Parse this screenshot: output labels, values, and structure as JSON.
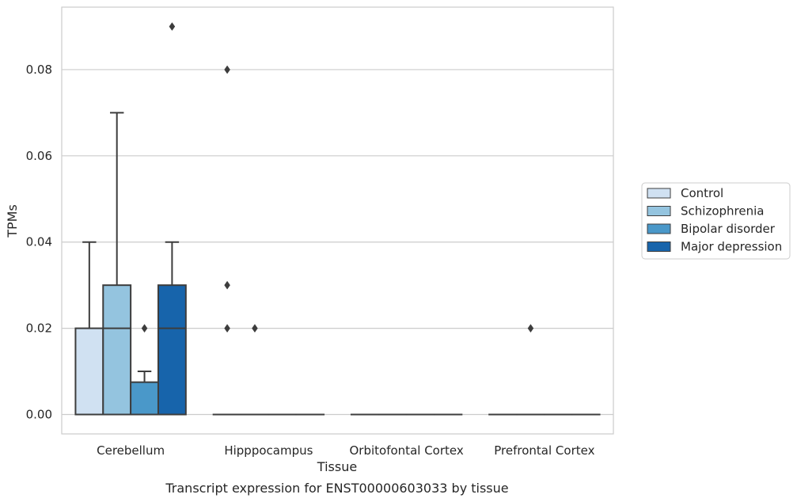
{
  "caption": "Transcript expression for ENST00000603033 by tissue",
  "chart_data": {
    "type": "boxplot",
    "xlabel": "Tissue",
    "ylabel": "TPMs",
    "ylim": [
      -0.0045,
      0.0945
    ],
    "yticks": [
      0.0,
      0.02,
      0.04,
      0.06,
      0.08
    ],
    "ytick_labels": [
      "0.00",
      "0.02",
      "0.04",
      "0.06",
      "0.08"
    ],
    "categories": [
      "Cerebellum",
      "Hipppocampus",
      "Orbitofontal Cortex",
      "Prefrontal Cortex"
    ],
    "grid": "horizontal",
    "legend_position": "right",
    "series": [
      {
        "name": "Control",
        "color": "#d0e1f2",
        "boxes": [
          {
            "whisker_low": 0.0,
            "q1": 0.0,
            "median": 0.0,
            "q3": 0.02,
            "whisker_high": 0.04,
            "outliers": []
          },
          {
            "whisker_low": 0.0,
            "q1": 0.0,
            "median": 0.0,
            "q3": 0.0,
            "whisker_high": 0.0,
            "outliers": [
              0.08,
              0.03,
              0.02
            ]
          },
          {
            "whisker_low": 0.0,
            "q1": 0.0,
            "median": 0.0,
            "q3": 0.0,
            "whisker_high": 0.0,
            "outliers": []
          },
          {
            "whisker_low": 0.0,
            "q1": 0.0,
            "median": 0.0,
            "q3": 0.0,
            "whisker_high": 0.0,
            "outliers": []
          }
        ]
      },
      {
        "name": "Schizophrenia",
        "color": "#94c4df",
        "boxes": [
          {
            "whisker_low": 0.0,
            "q1": 0.0,
            "median": 0.02,
            "q3": 0.03,
            "whisker_high": 0.07,
            "outliers": []
          },
          {
            "whisker_low": 0.0,
            "q1": 0.0,
            "median": 0.0,
            "q3": 0.0,
            "whisker_high": 0.0,
            "outliers": [
              0.02
            ]
          },
          {
            "whisker_low": 0.0,
            "q1": 0.0,
            "median": 0.0,
            "q3": 0.0,
            "whisker_high": 0.0,
            "outliers": []
          },
          {
            "whisker_low": 0.0,
            "q1": 0.0,
            "median": 0.0,
            "q3": 0.0,
            "whisker_high": 0.0,
            "outliers": [
              0.02
            ]
          }
        ]
      },
      {
        "name": "Bipolar disorder",
        "color": "#4a98c9",
        "boxes": [
          {
            "whisker_low": 0.0,
            "q1": 0.0,
            "median": 0.0,
            "q3": 0.0075,
            "whisker_high": 0.01,
            "outliers": [
              0.02
            ]
          },
          {
            "whisker_low": 0.0,
            "q1": 0.0,
            "median": 0.0,
            "q3": 0.0,
            "whisker_high": 0.0,
            "outliers": []
          },
          {
            "whisker_low": 0.0,
            "q1": 0.0,
            "median": 0.0,
            "q3": 0.0,
            "whisker_high": 0.0,
            "outliers": []
          },
          {
            "whisker_low": 0.0,
            "q1": 0.0,
            "median": 0.0,
            "q3": 0.0,
            "whisker_high": 0.0,
            "outliers": []
          }
        ]
      },
      {
        "name": "Major depression",
        "color": "#1764ab",
        "boxes": [
          {
            "whisker_low": 0.0,
            "q1": 0.0,
            "median": 0.02,
            "q3": 0.03,
            "whisker_high": 0.04,
            "outliers": [
              0.09
            ]
          },
          {
            "whisker_low": 0.0,
            "q1": 0.0,
            "median": 0.0,
            "q3": 0.0,
            "whisker_high": 0.0,
            "outliers": []
          },
          {
            "whisker_low": 0.0,
            "q1": 0.0,
            "median": 0.0,
            "q3": 0.0,
            "whisker_high": 0.0,
            "outliers": []
          },
          {
            "whisker_low": 0.0,
            "q1": 0.0,
            "median": 0.0,
            "q3": 0.0,
            "whisker_high": 0.0,
            "outliers": []
          }
        ]
      }
    ]
  }
}
